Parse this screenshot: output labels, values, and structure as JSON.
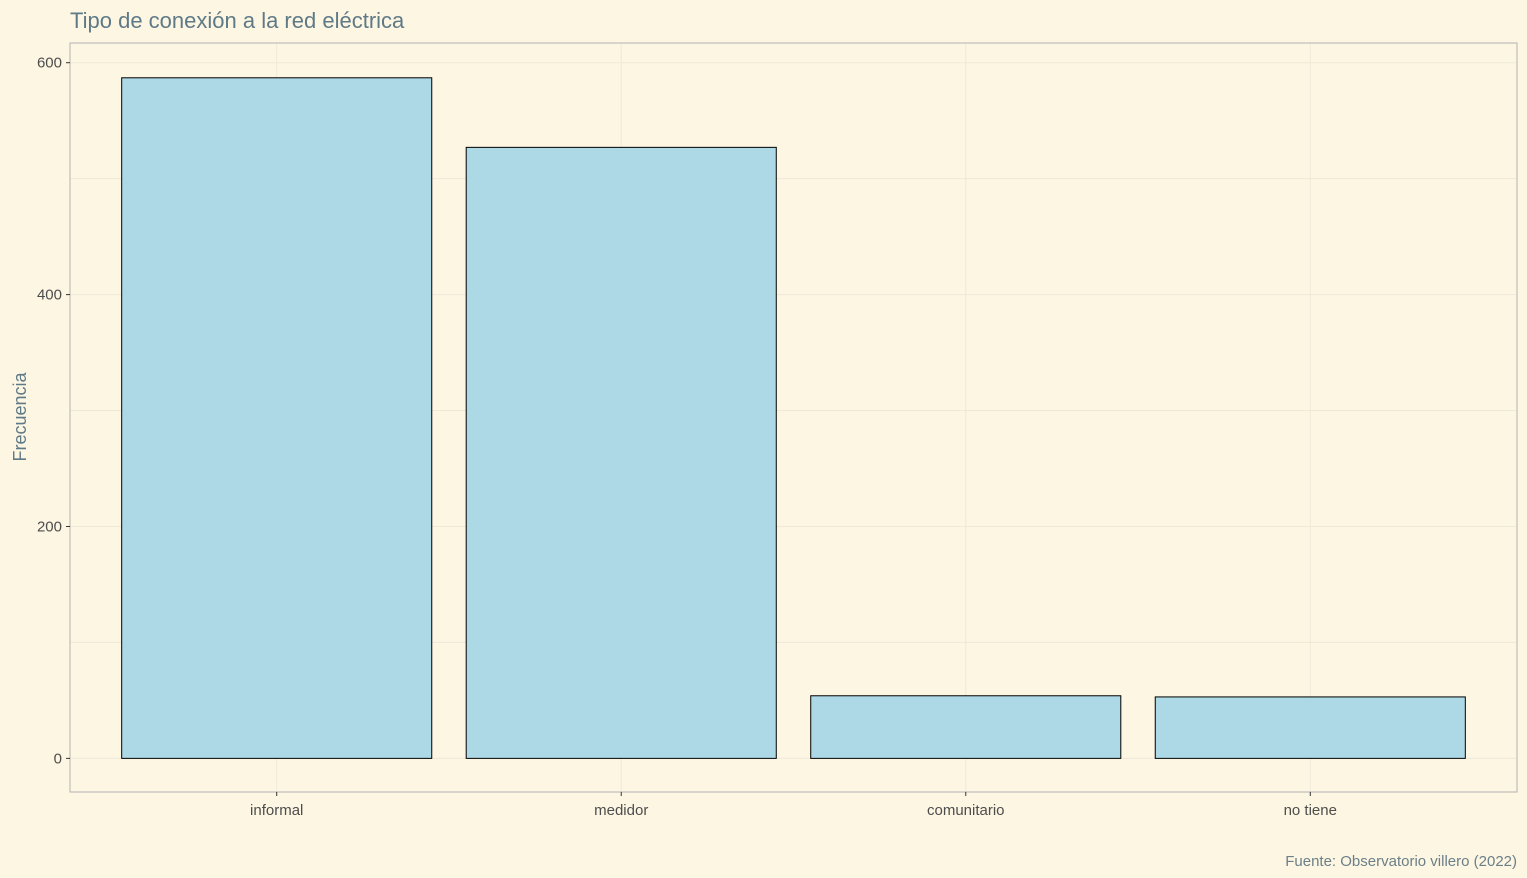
{
  "chart_data": {
    "type": "bar",
    "title": "Tipo de conexión a la red eléctrica",
    "xlabel": "",
    "ylabel": "Frecuencia",
    "caption": "Fuente: Observatorio villero (2022)",
    "categories": [
      "informal",
      "medidor",
      "comunitario",
      "no tiene"
    ],
    "values": [
      587,
      527,
      54,
      53
    ],
    "ylim": [
      -29,
      617
    ],
    "yticks": [
      0,
      200,
      400,
      600
    ],
    "grid": true,
    "legend": "none"
  },
  "colors": {
    "background": "#FDF6E3",
    "bar_fill": "#ADD8E6",
    "bar_stroke": "#000000",
    "grid": "#EFE9DA",
    "panel_border": "#B3B3B3"
  }
}
